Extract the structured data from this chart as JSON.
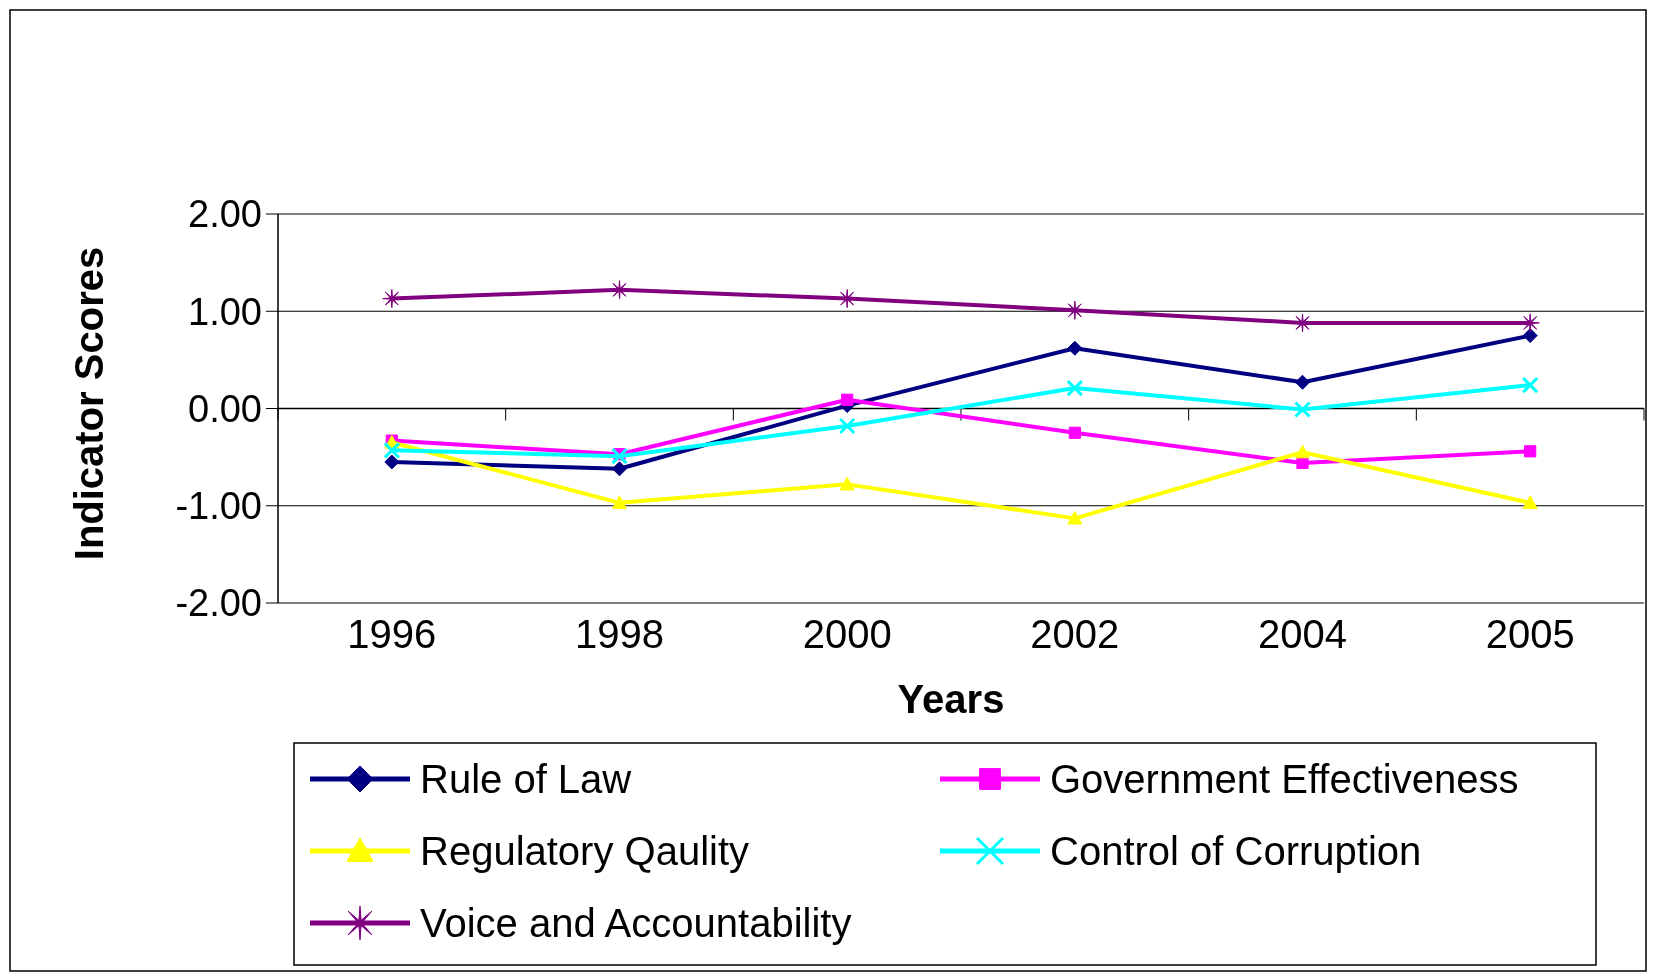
{
  "chart_data": {
    "type": "line",
    "xlabel": "Years",
    "ylabel": "Indicator Scores",
    "categories": [
      "1996",
      "1998",
      "2000",
      "2002",
      "2004",
      "2005"
    ],
    "ylim": [
      -2,
      2
    ],
    "yticks": [
      {
        "value": 2,
        "label": "2.00"
      },
      {
        "value": 1,
        "label": "1.00"
      },
      {
        "value": 0,
        "label": "0.00"
      },
      {
        "value": -1,
        "label": "-1.00"
      },
      {
        "value": -2,
        "label": "-2.00"
      }
    ],
    "grid": "y",
    "legend": "bottom",
    "series": [
      {
        "name": "Rule of Law",
        "color": "#000080",
        "marker": "diamond",
        "values": [
          -0.55,
          -0.62,
          0.03,
          0.62,
          0.27,
          0.75
        ]
      },
      {
        "name": "Government Effectiveness",
        "color": "#ff00ff",
        "marker": "square",
        "values": [
          -0.33,
          -0.47,
          0.09,
          -0.25,
          -0.56,
          -0.44
        ]
      },
      {
        "name": "Regulatory Qaulity",
        "color": "#ffff00",
        "marker": "triangle",
        "values": [
          -0.35,
          -0.97,
          -0.78,
          -1.13,
          -0.45,
          -0.97
        ]
      },
      {
        "name": "Control of Corruption",
        "color": "#00ffff",
        "marker": "cross",
        "values": [
          -0.43,
          -0.49,
          -0.18,
          0.21,
          -0.01,
          0.24
        ]
      },
      {
        "name": "Voice and Accountability",
        "color": "#800080",
        "marker": "star",
        "values": [
          1.13,
          1.22,
          1.13,
          1.01,
          0.88,
          0.88
        ]
      }
    ]
  }
}
